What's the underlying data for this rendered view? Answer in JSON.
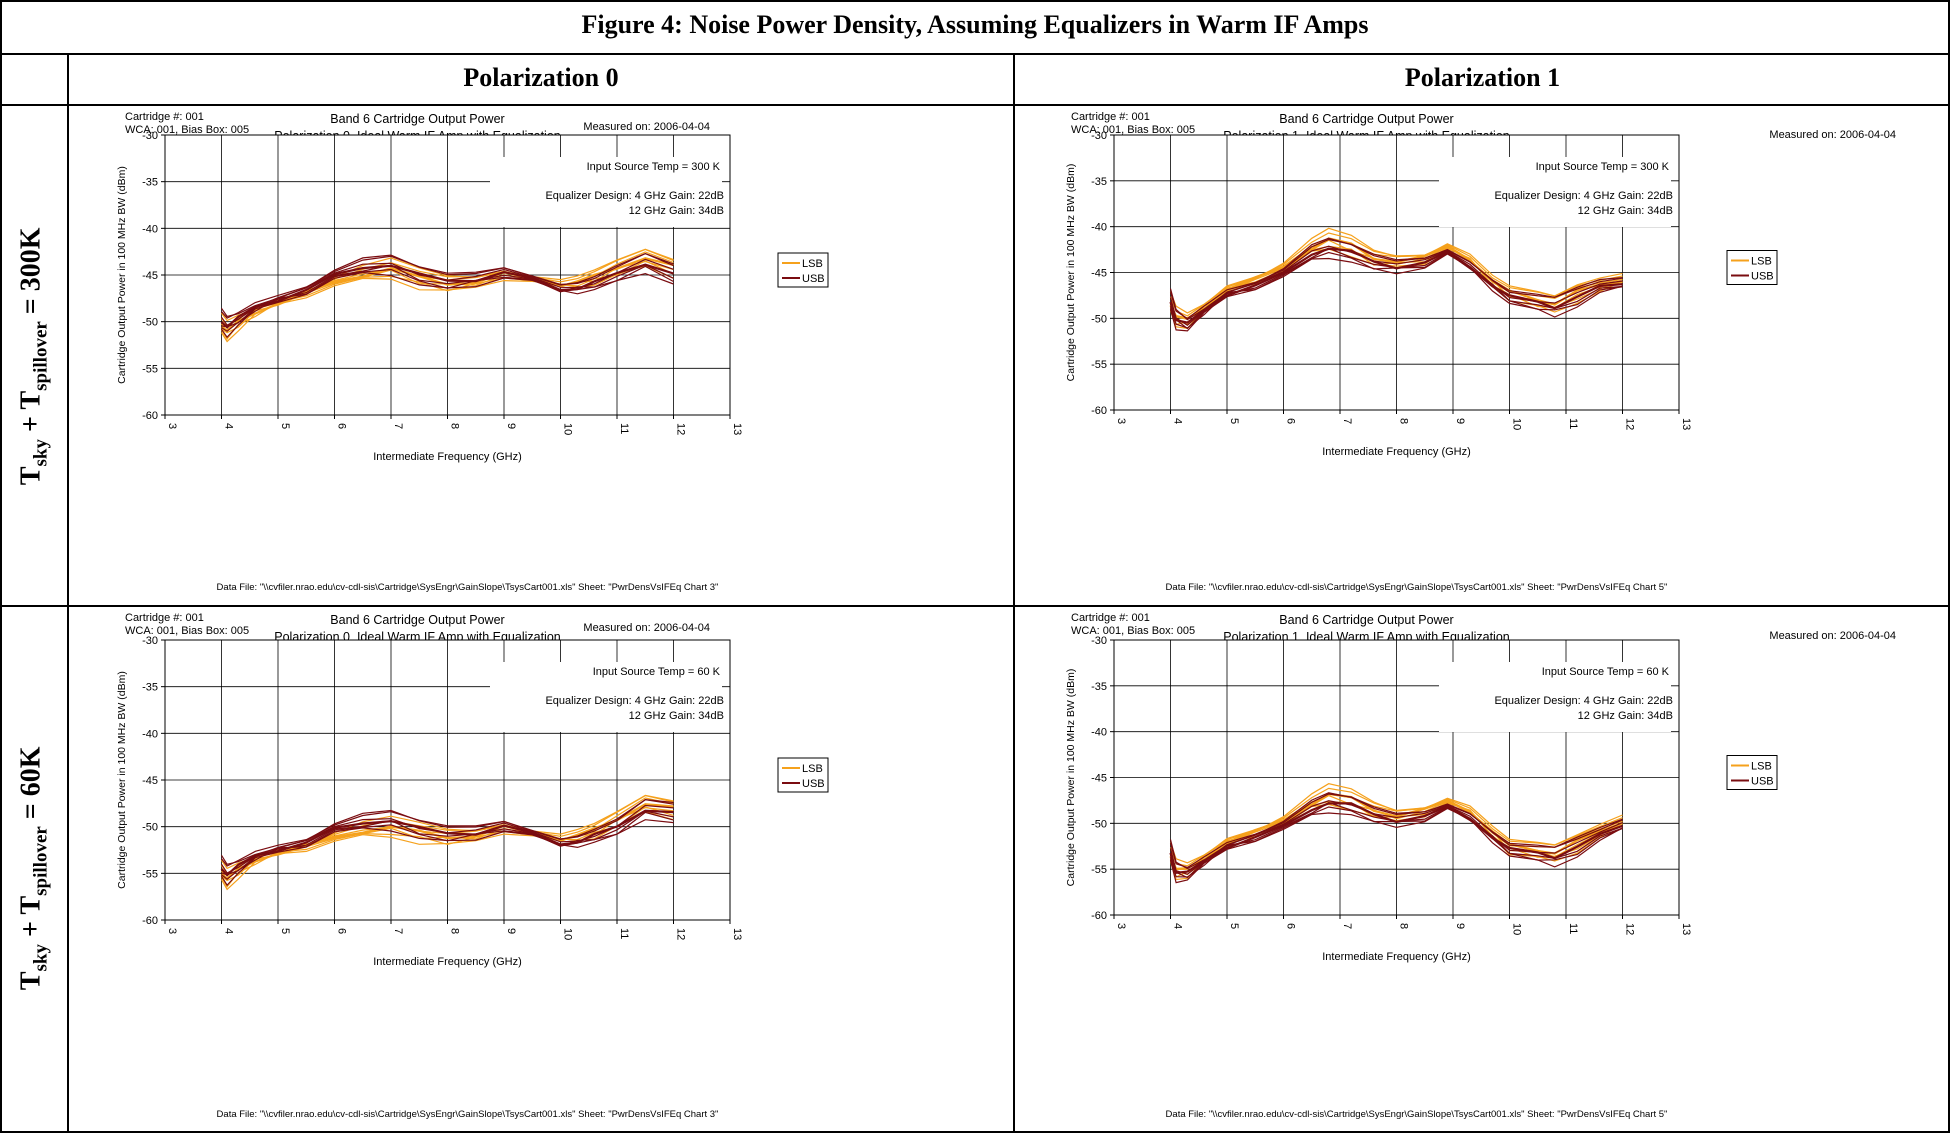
{
  "figure_title": "Figure 4: Noise Power Density, Assuming Equalizers in Warm IF Amps",
  "column_headers": [
    "Polarization 0",
    "Polarization 1"
  ],
  "row_labels": [
    {
      "a": "T",
      "a_sub": "sky",
      "plus": " + ",
      "b": "T",
      "b_sub": "spillover",
      "rest": " = 300K"
    },
    {
      "a": "T",
      "a_sub": "sky",
      "plus": " + ",
      "b": "T",
      "b_sub": "spillover",
      "rest": " = 60K"
    }
  ],
  "colors": {
    "LSB": "#f5a11c",
    "USB": "#7a0c10",
    "frame": "#000000"
  },
  "chart_data": [
    {
      "type": "line",
      "cartridge": "Cartridge #:  001",
      "wca": "WCA:  001, Bias Box:  005",
      "title": "Band 6 Cartridge Output Power",
      "subtitle": "Polarization 0, Ideal Warm IF Amp with Equalization",
      "measured": "Measured on:  2006-04-04",
      "annotation1": "Input Source Temp = 300 K",
      "annotation2": "Equalizer Design: 4 GHz Gain: 22dB",
      "annotation3": "12 GHz Gain: 34dB",
      "xlabel": "Intermediate  Frequency  (GHz)",
      "ylabel": "Cartridge Output Power in 100 MHz BW (dBm)",
      "xlim": [
        3,
        13
      ],
      "ylim": [
        -60,
        -30
      ],
      "xticks": [
        "3",
        "4",
        "5",
        "6",
        "7",
        "8",
        "9",
        "10",
        "11",
        "12",
        "13"
      ],
      "yticks": [
        "-30",
        "-35",
        "-40",
        "-45",
        "-50",
        "-55",
        "-60"
      ],
      "legend": [
        "LSB",
        "USB"
      ],
      "legend_position": "right",
      "grid": true,
      "footer": "Data File:  \"\\\\cvfiler.nrao.edu\\cv-cdl-sis\\Cartridge\\SysEngr\\GainSlope\\TsysCart001.xls\"  Sheet:  \"PwrDensVsIFEq Chart 3\"",
      "x": [
        4,
        4.1,
        4.3,
        4.6,
        5,
        5.5,
        6,
        6.5,
        7,
        7.5,
        8,
        8.5,
        9,
        9.5,
        10,
        10.3,
        10.6,
        11,
        11.5,
        12
      ],
      "series": [
        {
          "name": "LSB",
          "values": [
            -50.5,
            -51.2,
            -50.2,
            -49,
            -48,
            -47,
            -45.8,
            -45,
            -44.5,
            -45.5,
            -46,
            -45.8,
            -45,
            -45.5,
            -46,
            -45.8,
            -45.3,
            -44.3,
            -43.2,
            -44.3
          ]
        },
        {
          "name": "USB",
          "values": [
            -50,
            -50.6,
            -49.8,
            -48.5,
            -47.6,
            -46.7,
            -45.2,
            -44.2,
            -44,
            -45.2,
            -45.8,
            -45.5,
            -44.8,
            -45.6,
            -46.5,
            -46.4,
            -46,
            -45,
            -43.8,
            -45
          ]
        }
      ]
    },
    {
      "type": "line",
      "cartridge": "Cartridge #:  001",
      "wca": "WCA:  001, Bias Box:  005",
      "title": "Band 6 Cartridge Output Power",
      "subtitle": "Polarization 1, Ideal Warm IF Amp with Equalization",
      "measured": "Measured on:  2006-04-04",
      "annotation1": "Input Source Temp = 300 K",
      "annotation2": "Equalizer Design: 4 GHz Gain: 22dB",
      "annotation3": "12 GHz Gain: 34dB",
      "xlabel": "Intermediate  Frequency  (GHz)",
      "ylabel": "Cartridge Output Power in 100 MHz BW (dBm)",
      "xlim": [
        3,
        13
      ],
      "ylim": [
        -60,
        -30
      ],
      "xticks": [
        "3",
        "4",
        "5",
        "6",
        "7",
        "8",
        "9",
        "10",
        "11",
        "12",
        "13"
      ],
      "yticks": [
        "-30",
        "-35",
        "-40",
        "-45",
        "-50",
        "-55",
        "-60"
      ],
      "legend": [
        "LSB",
        "USB"
      ],
      "legend_position": "right",
      "grid": true,
      "footer": "Data File:  \"\\\\cvfiler.nrao.edu\\cv-cdl-sis\\Cartridge\\SysEngr\\GainSlope\\TsysCart001.xls\"  Sheet:  \"PwrDensVsIFEq Chart 5\"",
      "x": [
        4,
        4.1,
        4.3,
        4.6,
        5,
        5.5,
        6,
        6.5,
        6.8,
        7.2,
        7.6,
        8,
        8.5,
        8.9,
        9.3,
        9.7,
        10,
        10.5,
        10.8,
        11.2,
        11.6,
        12
      ],
      "series": [
        {
          "name": "LSB",
          "values": [
            -48.5,
            -50,
            -50.3,
            -48.8,
            -46.8,
            -45.8,
            -44.5,
            -42.3,
            -41.5,
            -42.2,
            -43.5,
            -43.8,
            -43.5,
            -42.2,
            -43.5,
            -46,
            -47.3,
            -48,
            -48.5,
            -47.3,
            -46.5,
            -45.8
          ]
        },
        {
          "name": "USB",
          "values": [
            -48.2,
            -50.2,
            -50.8,
            -49.2,
            -47.3,
            -46.5,
            -45.3,
            -43,
            -42.4,
            -43,
            -44,
            -44.4,
            -44,
            -43,
            -44.3,
            -46.4,
            -47.8,
            -48.4,
            -48.8,
            -47.8,
            -46.8,
            -46.2
          ]
        }
      ]
    },
    {
      "type": "line",
      "cartridge": "Cartridge #:  001",
      "wca": "WCA:  001, Bias Box:  005",
      "title": "Band 6 Cartridge Output Power",
      "subtitle": "Polarization 0, Ideal Warm IF Amp with Equalization",
      "measured": "Measured on:  2006-04-04",
      "annotation1": "Input Source Temp = 60 K",
      "annotation2": "Equalizer Design: 4 GHz Gain: 22dB",
      "annotation3": "12 GHz Gain: 34dB",
      "xlabel": "Intermediate  Frequency  (GHz)",
      "ylabel": "Cartridge Output Power in 100 MHz BW (dBm)",
      "xlim": [
        3,
        13
      ],
      "ylim": [
        -60,
        -30
      ],
      "xticks": [
        "3",
        "4",
        "5",
        "6",
        "7",
        "8",
        "9",
        "10",
        "11",
        "12",
        "13"
      ],
      "yticks": [
        "-30",
        "-35",
        "-40",
        "-45",
        "-50",
        "-55",
        "-60"
      ],
      "legend": [
        "LSB",
        "USB"
      ],
      "legend_position": "right",
      "grid": true,
      "footer": "Data File:  \"\\\\cvfiler.nrao.edu\\cv-cdl-sis\\Cartridge\\SysEngr\\GainSlope\\TsysCart001.xls\"  Sheet:  \"PwrDensVsIFEq Chart 3\"",
      "x": [
        4,
        4.1,
        4.3,
        4.6,
        5,
        5.5,
        6,
        6.5,
        7,
        7.5,
        8,
        8.5,
        9,
        9.5,
        10,
        10.3,
        10.6,
        11,
        11.5,
        12
      ],
      "series": [
        {
          "name": "LSB",
          "values": [
            -55,
            -55.8,
            -54.8,
            -53.6,
            -52.8,
            -52.2,
            -51.2,
            -50.5,
            -50.2,
            -50.8,
            -51.2,
            -51,
            -50.2,
            -50.8,
            -51.3,
            -51,
            -50.5,
            -49.3,
            -47.6,
            -48.2
          ]
        },
        {
          "name": "USB",
          "values": [
            -54.5,
            -55.2,
            -54.4,
            -53.2,
            -52.4,
            -51.8,
            -50.4,
            -49.6,
            -49.4,
            -50.4,
            -50.9,
            -50.7,
            -50,
            -50.9,
            -51.8,
            -51.6,
            -51.1,
            -50.2,
            -48.2,
            -48.6
          ]
        }
      ]
    },
    {
      "type": "line",
      "cartridge": "Cartridge #:  001",
      "wca": "WCA:  001, Bias Box:  005",
      "title": "Band 6 Cartridge Output Power",
      "subtitle": "Polarization 1, Ideal Warm IF Amp with Equalization",
      "measured": "Measured on:  2006-04-04",
      "annotation1": "Input Source Temp = 60 K",
      "annotation2": "Equalizer Design: 4 GHz Gain: 22dB",
      "annotation3": "12 GHz Gain: 34dB",
      "xlabel": "Intermediate  Frequency  (GHz)",
      "ylabel": "Cartridge Output Power in 100 MHz BW (dBm)",
      "xlim": [
        3,
        13
      ],
      "ylim": [
        -60,
        -30
      ],
      "xticks": [
        "3",
        "4",
        "5",
        "6",
        "7",
        "8",
        "9",
        "10",
        "11",
        "12",
        "13"
      ],
      "yticks": [
        "-30",
        "-35",
        "-40",
        "-45",
        "-50",
        "-55",
        "-60"
      ],
      "legend": [
        "LSB",
        "USB"
      ],
      "legend_position": "right",
      "grid": true,
      "footer": "Data File:  \"\\\\cvfiler.nrao.edu\\cv-cdl-sis\\Cartridge\\SysEngr\\GainSlope\\TsysCart001.xls\"  Sheet:  \"PwrDensVsIFEq Chart 5\"",
      "x": [
        4,
        4.1,
        4.3,
        4.6,
        5,
        5.5,
        6,
        6.5,
        6.8,
        7.2,
        7.6,
        8,
        8.5,
        8.9,
        9.3,
        9.7,
        10,
        10.5,
        10.8,
        11.2,
        11.6,
        12
      ],
      "series": [
        {
          "name": "LSB",
          "values": [
            -53.5,
            -55.2,
            -55.2,
            -53.8,
            -52,
            -51,
            -49.8,
            -47.8,
            -47,
            -47.5,
            -48.6,
            -49.2,
            -48.7,
            -47.6,
            -48.6,
            -51,
            -52.6,
            -53,
            -53.3,
            -52.2,
            -51,
            -49.8
          ]
        },
        {
          "name": "USB",
          "values": [
            -53.2,
            -55.4,
            -55.6,
            -54.2,
            -52.5,
            -51.6,
            -50.5,
            -48.5,
            -47.8,
            -48.2,
            -49.2,
            -49.7,
            -49.3,
            -48.4,
            -49.4,
            -51.5,
            -53,
            -53.4,
            -53.7,
            -52.7,
            -51.5,
            -50.2
          ]
        }
      ]
    }
  ]
}
